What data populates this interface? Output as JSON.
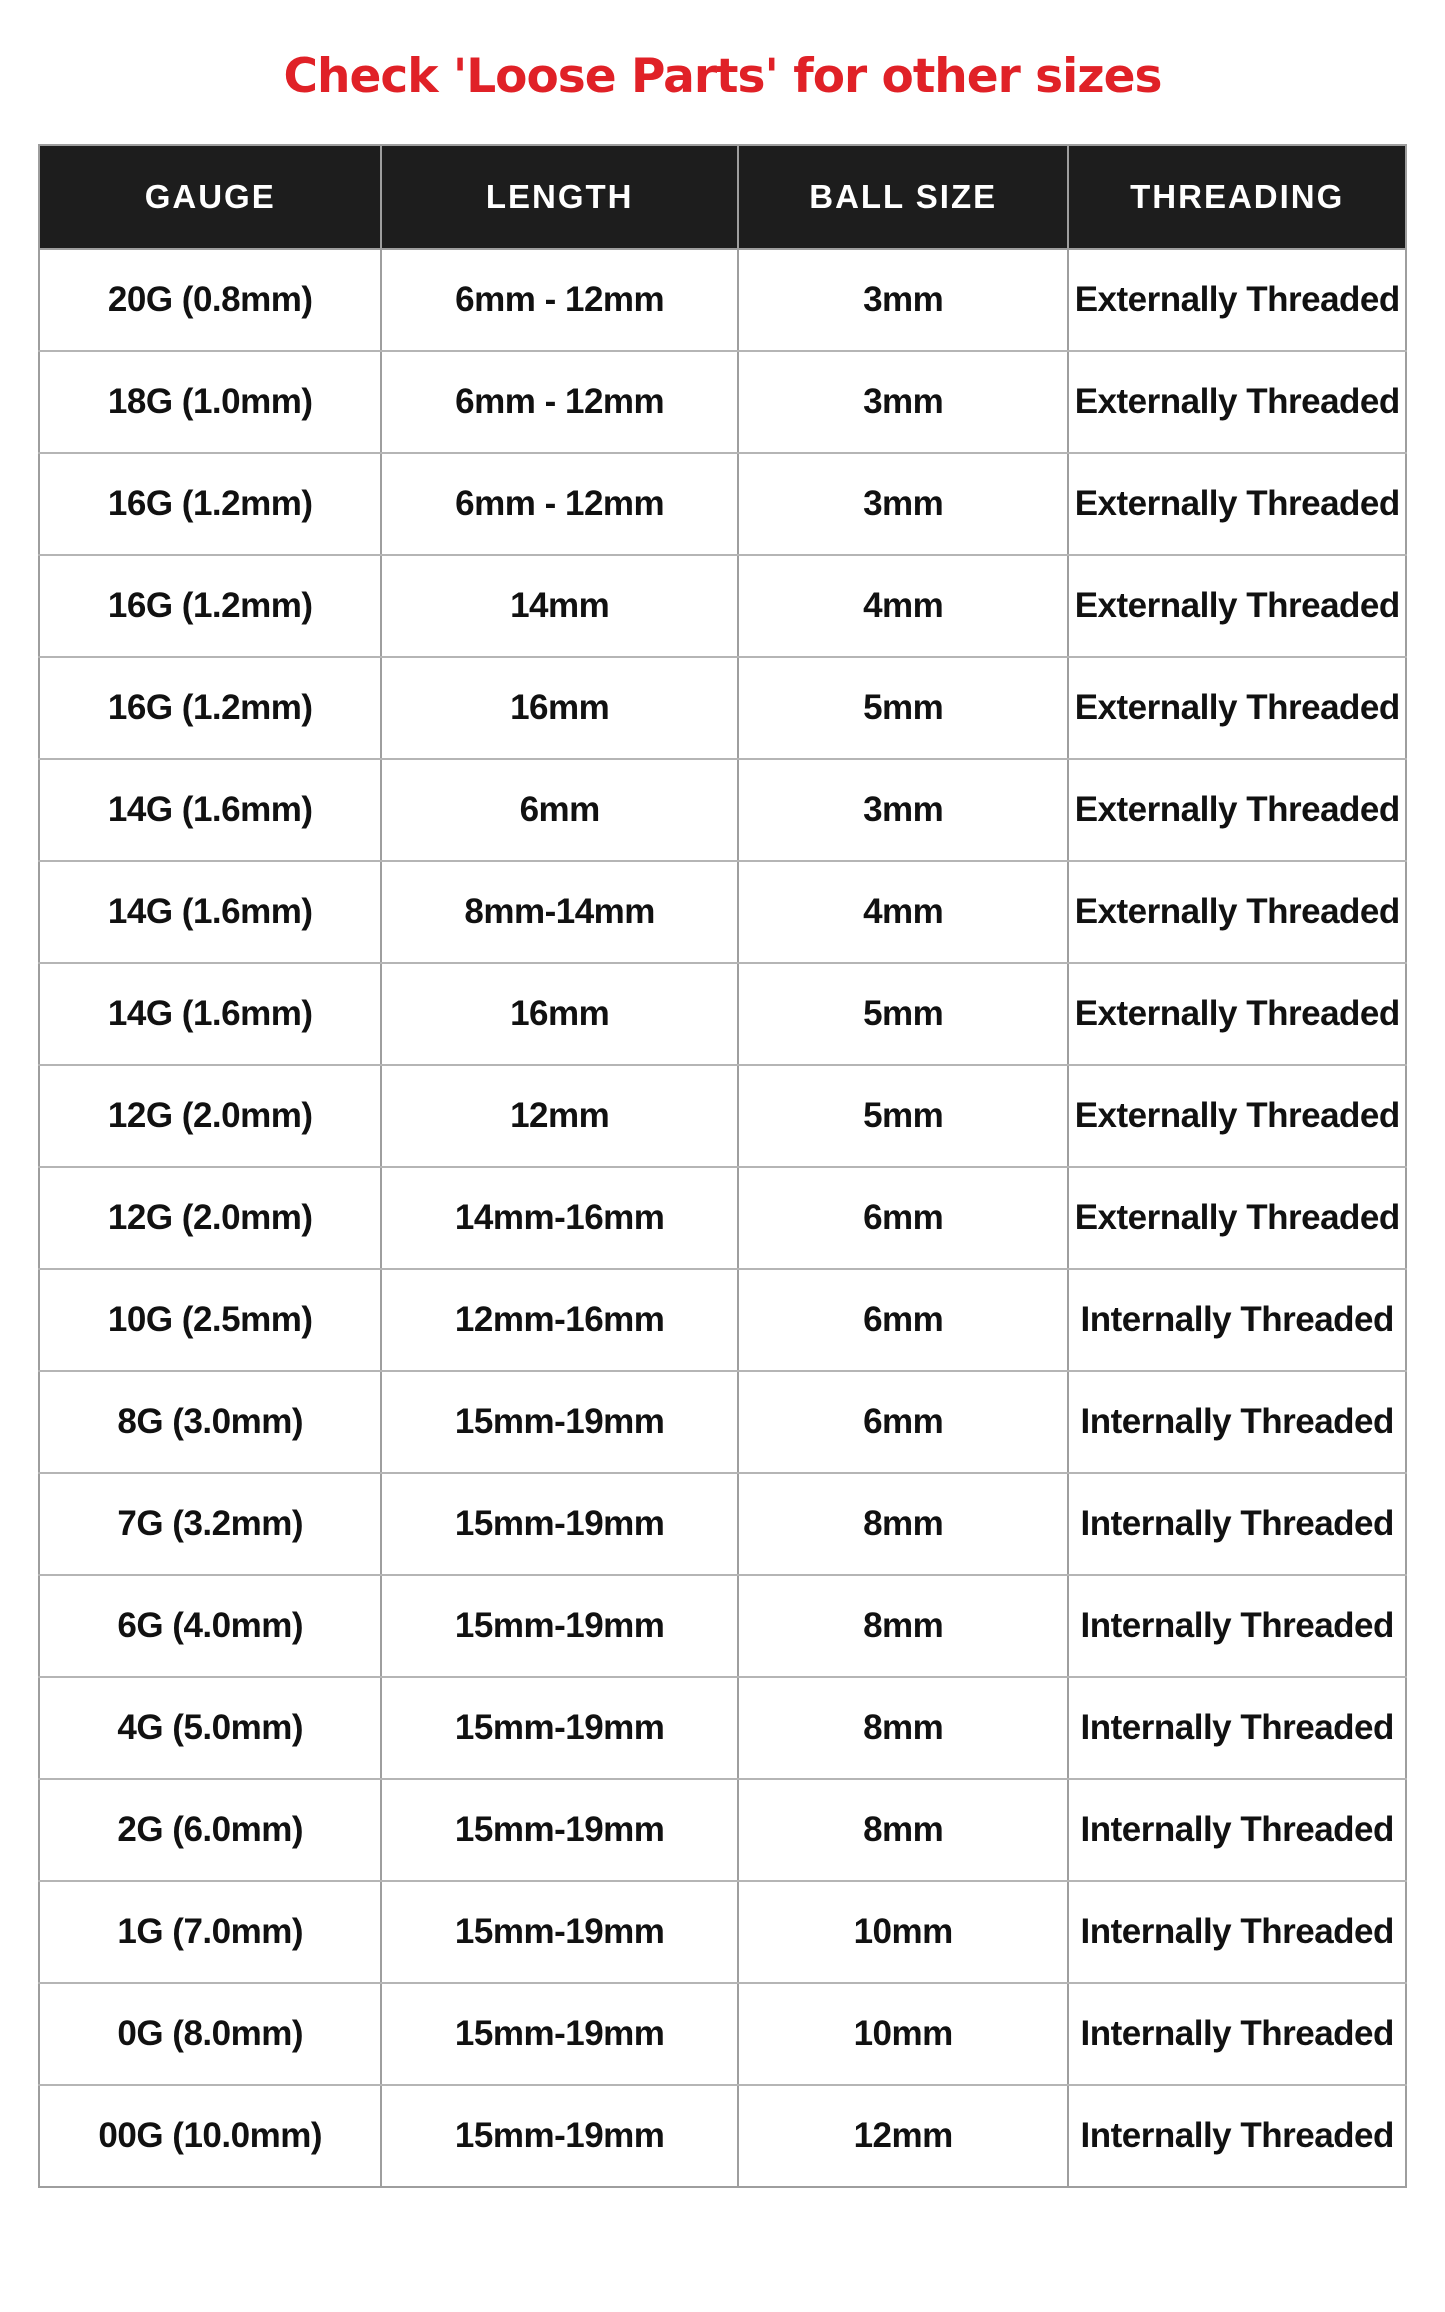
{
  "title": "Check 'Loose Parts' for other sizes",
  "colors": {
    "page_bg": "#ffffff",
    "title_red": "#e02127",
    "header_bg": "#1d1d1d",
    "header_text": "#ffffff",
    "cell_text": "#111111",
    "grid_vertical": "#9e9e9e",
    "grid_horizontal": "#b5b5b5"
  },
  "chart_data": {
    "type": "table",
    "title": "Check 'Loose Parts' for other sizes",
    "columns": [
      "GAUGE",
      "LENGTH",
      "BALL SIZE",
      "THREADING"
    ],
    "rows": [
      [
        "20G (0.8mm)",
        "6mm - 12mm",
        "3mm",
        "Externally Threaded"
      ],
      [
        "18G (1.0mm)",
        "6mm - 12mm",
        "3mm",
        "Externally Threaded"
      ],
      [
        "16G (1.2mm)",
        "6mm - 12mm",
        "3mm",
        "Externally Threaded"
      ],
      [
        "16G (1.2mm)",
        "14mm",
        "4mm",
        "Externally Threaded"
      ],
      [
        "16G (1.2mm)",
        "16mm",
        "5mm",
        "Externally Threaded"
      ],
      [
        "14G (1.6mm)",
        "6mm",
        "3mm",
        "Externally Threaded"
      ],
      [
        "14G (1.6mm)",
        "8mm-14mm",
        "4mm",
        "Externally Threaded"
      ],
      [
        "14G (1.6mm)",
        "16mm",
        "5mm",
        "Externally Threaded"
      ],
      [
        "12G (2.0mm)",
        "12mm",
        "5mm",
        "Externally Threaded"
      ],
      [
        "12G (2.0mm)",
        "14mm-16mm",
        "6mm",
        "Externally Threaded"
      ],
      [
        "10G (2.5mm)",
        "12mm-16mm",
        "6mm",
        "Internally Threaded"
      ],
      [
        "8G (3.0mm)",
        "15mm-19mm",
        "6mm",
        "Internally Threaded"
      ],
      [
        "7G (3.2mm)",
        "15mm-19mm",
        "8mm",
        "Internally Threaded"
      ],
      [
        "6G (4.0mm)",
        "15mm-19mm",
        "8mm",
        "Internally Threaded"
      ],
      [
        "4G (5.0mm)",
        "15mm-19mm",
        "8mm",
        "Internally Threaded"
      ],
      [
        "2G (6.0mm)",
        "15mm-19mm",
        "8mm",
        "Internally Threaded"
      ],
      [
        "1G (7.0mm)",
        "15mm-19mm",
        "10mm",
        "Internally Threaded"
      ],
      [
        "0G (8.0mm)",
        "15mm-19mm",
        "10mm",
        "Internally Threaded"
      ],
      [
        "00G (10.0mm)",
        "15mm-19mm",
        "12mm",
        "Internally Threaded"
      ]
    ]
  }
}
